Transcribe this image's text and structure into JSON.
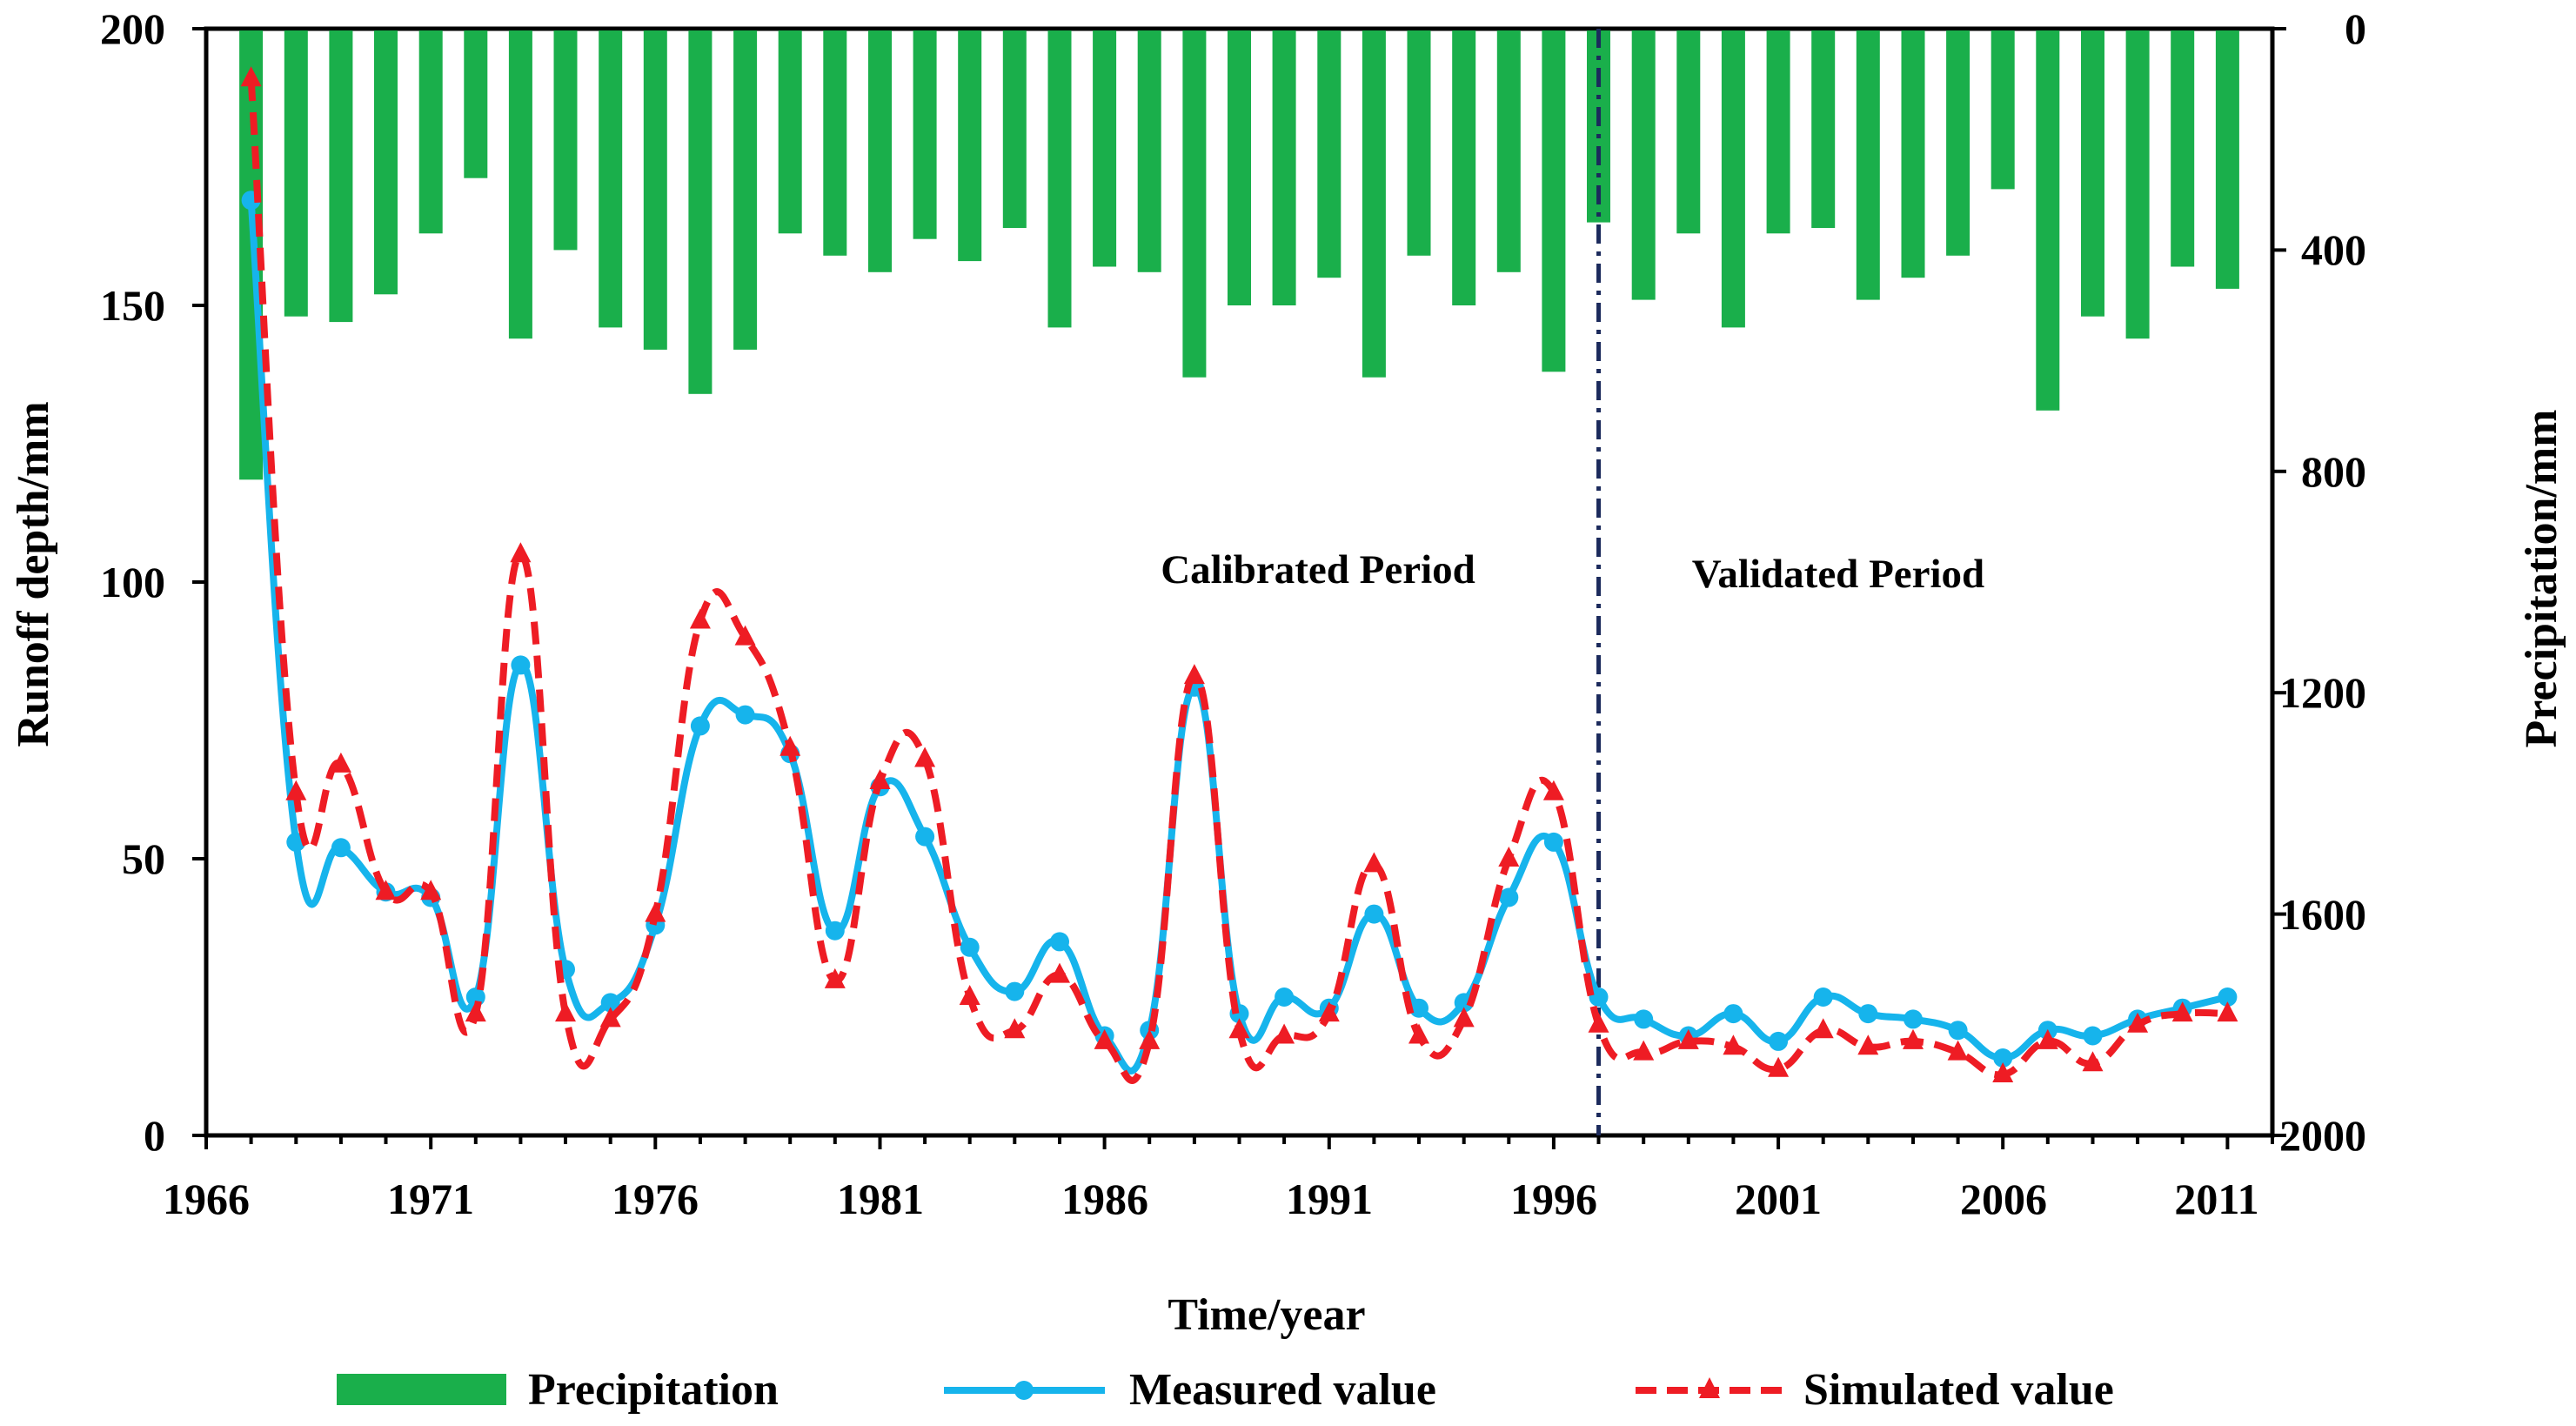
{
  "chart_data": {
    "type": "bar+line",
    "x_label": "Time/year",
    "y_left_label": "Runoff depth/mm",
    "y_right_label": "Precipitation/mm",
    "x_ticks": [
      "1966",
      "1971",
      "1976",
      "1981",
      "1986",
      "1991",
      "1996",
      "2001",
      "2006",
      "2011"
    ],
    "y_left_ticks": [
      "0",
      "50",
      "100",
      "150",
      "200"
    ],
    "y_right_ticks": [
      "0",
      "400",
      "800",
      "1200",
      "1600",
      "2000"
    ],
    "xlim": [
      1966,
      2012
    ],
    "y_left_lim": [
      0,
      200
    ],
    "y_right_lim": [
      0,
      2000
    ],
    "years": [
      1967,
      1968,
      1969,
      1970,
      1971,
      1972,
      1973,
      1974,
      1975,
      1976,
      1977,
      1978,
      1979,
      1980,
      1981,
      1982,
      1983,
      1984,
      1985,
      1986,
      1987,
      1988,
      1989,
      1990,
      1991,
      1992,
      1993,
      1994,
      1995,
      1996,
      1997,
      1998,
      1999,
      2000,
      2001,
      2002,
      2003,
      2004,
      2005,
      2006,
      2007,
      2008,
      2009,
      2010,
      2011
    ],
    "series": [
      {
        "name": "Precipitation",
        "kind": "bar",
        "axis": "right",
        "values": [
          815,
          520,
          530,
          480,
          370,
          270,
          560,
          400,
          540,
          580,
          660,
          580,
          370,
          410,
          440,
          380,
          420,
          360,
          540,
          430,
          440,
          630,
          500,
          500,
          450,
          630,
          410,
          500,
          440,
          620,
          350,
          490,
          370,
          540,
          370,
          360,
          490,
          450,
          410,
          290,
          690,
          520,
          560,
          430,
          470
        ]
      },
      {
        "name": "Measured value",
        "kind": "line",
        "axis": "left",
        "values": [
          169,
          53,
          52,
          44,
          43,
          25,
          85,
          30,
          24,
          38,
          74,
          76,
          69,
          37,
          63,
          54,
          34,
          26,
          35,
          18,
          19,
          81,
          22,
          25,
          23,
          40,
          23,
          24,
          43,
          53,
          25,
          21,
          18,
          22,
          17,
          25,
          22,
          21,
          19,
          14,
          19,
          18,
          21,
          23,
          25
        ]
      },
      {
        "name": "Simulated value",
        "kind": "line",
        "axis": "left",
        "values": [
          191,
          62,
          67,
          44,
          44,
          22,
          105,
          22,
          21,
          40,
          93,
          90,
          70,
          28,
          64,
          68,
          25,
          19,
          29,
          17,
          17,
          83,
          19,
          18,
          22,
          49,
          18,
          21,
          50,
          62,
          20,
          15,
          17,
          16,
          12,
          19,
          16,
          17,
          15,
          11,
          17,
          13,
          20,
          22,
          22
        ]
      }
    ],
    "divider_year": 1997,
    "annotations": [
      "Calibrated Period",
      "Validated Period"
    ],
    "colors": {
      "precipitation": "#1aaf4b",
      "measured": "#16b4ec",
      "simulated": "#ee1c24",
      "divider": "#1b2a5c",
      "axis": "#000000"
    }
  }
}
